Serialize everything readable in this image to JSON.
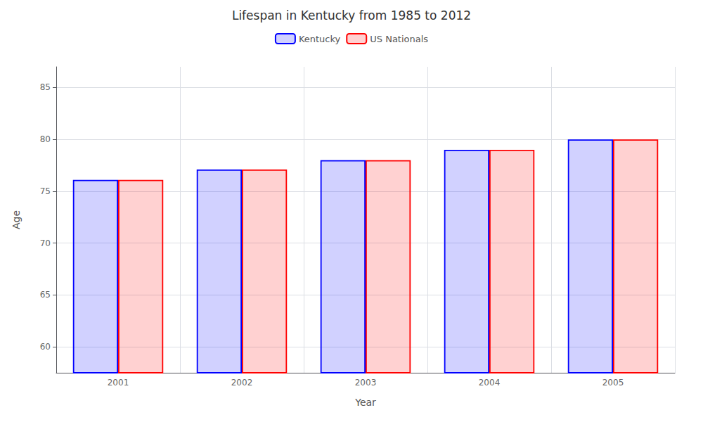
{
  "chart_data": {
    "type": "bar",
    "title": "Lifespan in Kentucky from 1985 to 2012",
    "xlabel": "Year",
    "ylabel": "Age",
    "categories": [
      "2001",
      "2002",
      "2003",
      "2004",
      "2005"
    ],
    "series": [
      {
        "name": "Kentucky",
        "color": "#0000ff",
        "values": [
          76.1,
          77.1,
          78.0,
          79.0,
          80.0
        ]
      },
      {
        "name": "US Nationals",
        "color": "#ff0000",
        "values": [
          76.1,
          77.1,
          78.0,
          79.0,
          80.0
        ]
      }
    ],
    "ylim": [
      57.5,
      87
    ],
    "yticks": [
      60,
      65,
      70,
      75,
      80,
      85
    ],
    "grid": true,
    "legend": "top"
  }
}
